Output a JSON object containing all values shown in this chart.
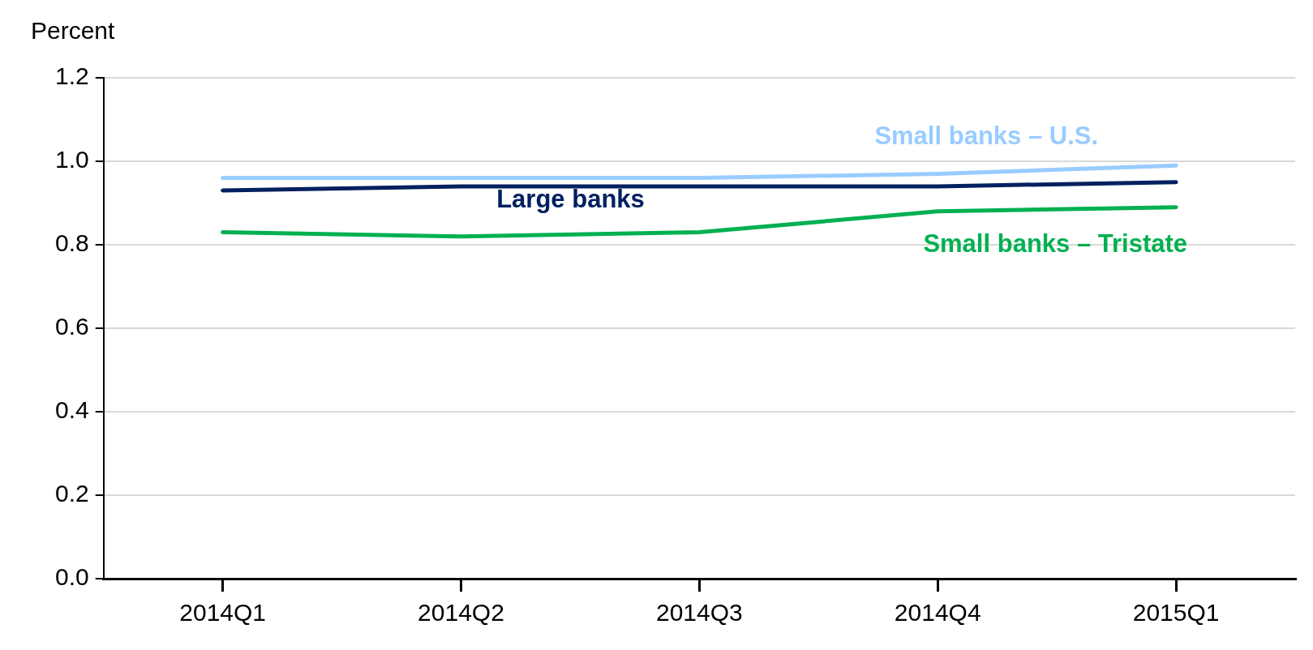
{
  "chart_data": {
    "type": "line",
    "ylabel": "Percent",
    "categories": [
      "2014Q1",
      "2014Q2",
      "2014Q3",
      "2014Q4",
      "2015Q1"
    ],
    "series": [
      {
        "name": "Small banks – U.S.",
        "color": "#99ccff",
        "values": [
          0.96,
          0.96,
          0.96,
          0.97,
          0.99
        ]
      },
      {
        "name": "Large banks",
        "color": "#002060",
        "values": [
          0.93,
          0.94,
          0.94,
          0.94,
          0.95
        ]
      },
      {
        "name": "Small banks – Tristate",
        "color": "#00b050",
        "values": [
          0.83,
          0.82,
          0.83,
          0.88,
          0.89
        ]
      }
    ],
    "ylim": [
      0,
      1.2
    ],
    "yticks": [
      {
        "value": 0,
        "label": "0.0"
      },
      0.2,
      0.4,
      0.6,
      0.8,
      {
        "value": 1,
        "label": "1.0"
      },
      1.2
    ],
    "grid": "y",
    "legend": false,
    "marker": "none",
    "line_style": "solid"
  }
}
